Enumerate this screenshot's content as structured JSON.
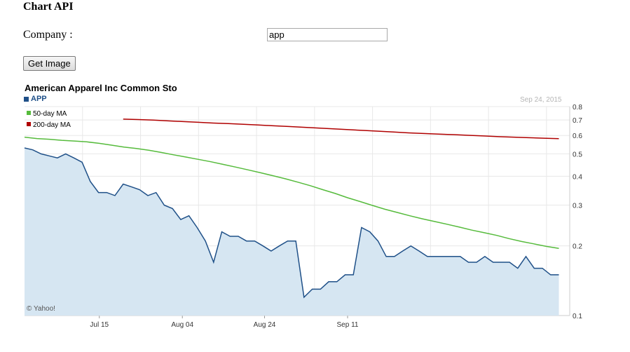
{
  "page": {
    "heading": "Chart API",
    "company_label": "Company :",
    "company_value": "app",
    "get_image_label": "Get Image"
  },
  "chart_data": {
    "type": "area",
    "title": "American Apparel Inc Common Sto",
    "ticker": "APP",
    "date": "Sep 24, 2015",
    "credit": "© Yahoo!",
    "ylim": [
      0.1,
      0.8
    ],
    "y_scale": "log",
    "y_ticks": [
      0.8,
      0.7,
      0.6,
      0.5,
      0.4,
      0.3,
      0.2,
      0.1
    ],
    "y_tick_labels": [
      "0.8",
      "0.7",
      "0.6",
      "0.5",
      "0.4",
      "0.3",
      "0.2",
      "0.1"
    ],
    "x_tick_labels": [
      {
        "label": "Jul 15",
        "index": 9.1
      },
      {
        "label": "Aug 04",
        "index": 19.2
      },
      {
        "label": "Aug 24",
        "index": 29.2
      },
      {
        "label": "Sep 11",
        "index": 39.3
      }
    ],
    "grid": true,
    "legend_position": "top-left",
    "colors": {
      "price": "#1f5088",
      "price_fill": "#d6e6f2",
      "ma50": "#56bb3c",
      "ma200": "#b00000",
      "grid": "#e8e8e8"
    },
    "series": [
      {
        "name": "APP",
        "values": [
          0.53,
          0.52,
          0.5,
          0.49,
          0.48,
          0.5,
          0.48,
          0.46,
          0.38,
          0.34,
          0.34,
          0.33,
          0.37,
          0.36,
          0.35,
          0.33,
          0.34,
          0.3,
          0.29,
          0.26,
          0.27,
          0.24,
          0.21,
          0.17,
          0.23,
          0.22,
          0.22,
          0.21,
          0.21,
          0.2,
          0.19,
          0.2,
          0.21,
          0.21,
          0.12,
          0.13,
          0.13,
          0.14,
          0.14,
          0.15,
          0.15,
          0.24,
          0.23,
          0.21,
          0.18,
          0.18,
          0.19,
          0.2,
          0.19,
          0.18,
          0.18,
          0.18,
          0.18,
          0.18,
          0.17,
          0.17,
          0.18,
          0.17,
          0.17,
          0.17,
          0.16,
          0.18,
          0.16,
          0.16,
          0.15,
          0.15
        ]
      },
      {
        "name": "50-day MA",
        "values": [
          0.59,
          0.582,
          0.578,
          0.572,
          0.568,
          0.563,
          0.555,
          0.545,
          0.535,
          0.527,
          0.518,
          0.507,
          0.495,
          0.484,
          0.473,
          0.462,
          0.45,
          0.438,
          0.426,
          0.414,
          0.402,
          0.39,
          0.377,
          0.364,
          0.35,
          0.337,
          0.323,
          0.311,
          0.299,
          0.288,
          0.279,
          0.27,
          0.262,
          0.255,
          0.248,
          0.241,
          0.234,
          0.228,
          0.222,
          0.215,
          0.209,
          0.204,
          0.199,
          0.195
        ]
      },
      {
        "name": "200-day MA",
        "values": [
          0.706,
          0.703,
          0.699,
          0.694,
          0.689,
          0.684,
          0.679,
          0.675,
          0.671,
          0.666,
          0.661,
          0.656,
          0.651,
          0.646,
          0.641,
          0.636,
          0.631,
          0.626,
          0.621,
          0.616,
          0.612,
          0.608,
          0.605,
          0.601,
          0.597,
          0.593,
          0.59,
          0.587,
          0.584,
          0.581
        ]
      }
    ]
  }
}
